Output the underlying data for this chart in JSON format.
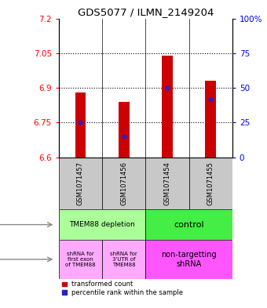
{
  "title": "GDS5077 / ILMN_2149204",
  "samples": [
    "GSM1071457",
    "GSM1071456",
    "GSM1071454",
    "GSM1071455"
  ],
  "bar_bottoms": [
    6.6,
    6.6,
    6.6,
    6.6
  ],
  "bar_tops": [
    6.88,
    6.84,
    7.04,
    6.93
  ],
  "blue_marks": [
    6.75,
    6.69,
    6.9,
    6.85
  ],
  "ylim": [
    6.6,
    7.2
  ],
  "left_yticks": [
    6.6,
    6.75,
    6.9,
    7.05,
    7.2
  ],
  "left_yticklabels": [
    "6.6",
    "6.75",
    "6.9",
    "7.05",
    "7.2"
  ],
  "right_ytick_percents": [
    0,
    25,
    50,
    75,
    100
  ],
  "right_ylim_labels": [
    "0",
    "25",
    "50",
    "75",
    "100%"
  ],
  "hlines": [
    6.75,
    6.9,
    7.05
  ],
  "bar_color": "#cc0000",
  "blue_color": "#2222cc",
  "protocol_labels": [
    "TMEM88 depletion",
    "control"
  ],
  "protocol_colors": [
    "#aaff99",
    "#44ee44"
  ],
  "other_label0": "shRNA for\nfirst exon\nof TMEM88",
  "other_label1": "shRNA for\n3'UTR of\nTMEM88",
  "other_label2": "non-targetting\nshRNA",
  "other_color_12": "#ffaaff",
  "other_color_34": "#ff55ff",
  "sample_bg_color": "#c8c8c8",
  "legend_red_label": "transformed count",
  "legend_blue_label": "percentile rank within the sample",
  "bar_width": 0.25,
  "n_samples": 4
}
